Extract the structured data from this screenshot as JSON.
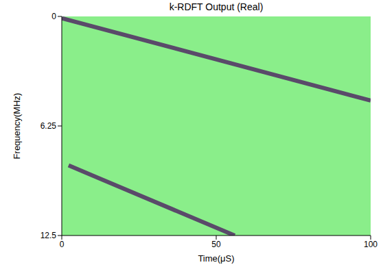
{
  "chart_data": {
    "type": "line",
    "title": "k-RDFT Output (Real)",
    "x_label": "Time(μS)",
    "y_label": "Frequency(MHz)",
    "xlim": [
      0,
      100
    ],
    "ylim": [
      0,
      12.5
    ],
    "xticks": [
      0,
      50,
      100
    ],
    "yticks": [
      0,
      6.25,
      12.5
    ],
    "grid": false,
    "series": [
      {
        "x": [
          0,
          100
        ],
        "values": [
          0.1,
          4.8
        ],
        "color": "#5a4a6a"
      },
      {
        "x": [
          2.2,
          56
        ],
        "values": [
          8.5,
          12.5
        ],
        "color": "#5a4a6a"
      }
    ]
  }
}
